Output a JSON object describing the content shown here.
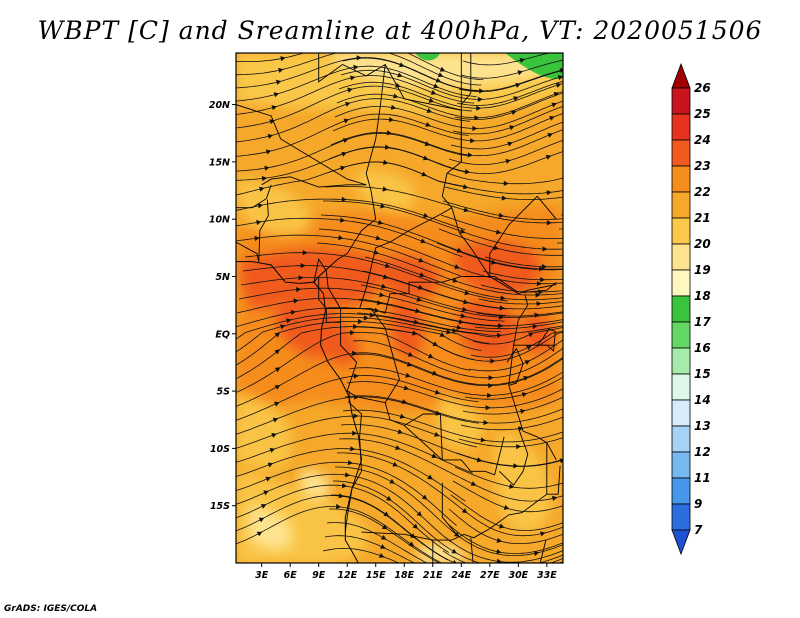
{
  "page": {
    "title": "WBPT [C] and Sreamline at 400hPa, VT: 2020051506",
    "credit": "GrADS: IGES/COLA"
  },
  "chart_data": {
    "type": "heatmap",
    "title": "WBPT [C] and Sreamline at 400hPa, VT: 2020051506",
    "x_ticks": [
      "3E",
      "6E",
      "9E",
      "12E",
      "15E",
      "18E",
      "21E",
      "24E",
      "27E",
      "30E",
      "33E"
    ],
    "x_tick_values": [
      3,
      6,
      9,
      12,
      15,
      18,
      21,
      24,
      27,
      30,
      33
    ],
    "y_ticks": [
      "20N",
      "15N",
      "10N",
      "5N",
      "EQ",
      "5S",
      "10S",
      "15S"
    ],
    "y_tick_values": [
      20,
      15,
      10,
      5,
      0,
      -5,
      -10,
      -15
    ],
    "xlim": [
      0.3,
      34.7
    ],
    "ylim": [
      -20,
      24.5
    ],
    "colorbar": {
      "labels": [
        "26",
        "25",
        "24",
        "23",
        "22",
        "21",
        "20",
        "19",
        "18",
        "17",
        "16",
        "15",
        "14",
        "13",
        "12",
        "11",
        "9",
        "7"
      ],
      "colors": [
        "#a00000",
        "#c8141e",
        "#e6321e",
        "#f05a1e",
        "#f58c1e",
        "#f5a82a",
        "#fac84a",
        "#fee38f",
        "#fff7c0",
        "#39c43c",
        "#64d864",
        "#a5ecaa",
        "#ddf8e8",
        "#d6ecfa",
        "#a5d2f5",
        "#78b8f0",
        "#4696ea",
        "#2a6ee0",
        "#1e50d2"
      ]
    },
    "fields": {
      "wbpt_levels": [
        19,
        20,
        21,
        22,
        23,
        17
      ],
      "wbpt_colors": [
        "#fee38f",
        "#fac84a",
        "#f5a82a",
        "#f58c1e",
        "#f05a1e",
        "#39c43c"
      ]
    }
  }
}
